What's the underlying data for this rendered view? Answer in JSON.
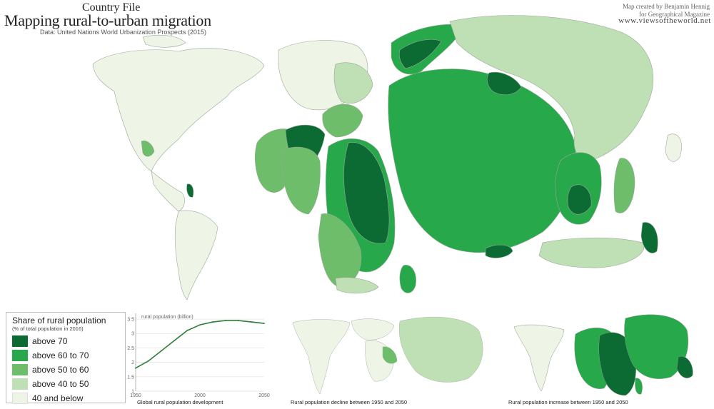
{
  "header": {
    "kicker": "Country File",
    "title": "Mapping rural-to-urban migration",
    "source": "Data: United Nations World Urbanization Prospects (2015)",
    "credit_line1": "Map created by Benjamin Hennig",
    "credit_line2": "for Geographical Magazine",
    "site": "www.viewsoftheworld.net"
  },
  "colors": {
    "above_70": "#0c6b33",
    "above_60_to_70": "#27a84a",
    "above_50_to_60": "#6dbd6a",
    "above_40_to_50": "#bfe0b4",
    "below_40": "#eef5e7",
    "outline": "#9aa89a"
  },
  "legend": {
    "title": "Share of rural population",
    "subtitle": "(% of total population in 2016)",
    "items": [
      {
        "label": "above 70",
        "color": "#0c6b33"
      },
      {
        "label": "above 60 to 70",
        "color": "#27a84a"
      },
      {
        "label": "above 50 to 60",
        "color": "#6dbd6a"
      },
      {
        "label": "above 40 to 50",
        "color": "#bfe0b4"
      },
      {
        "label": "40 and below",
        "color": "#eef5e7"
      }
    ]
  },
  "chart_data": {
    "type": "line",
    "title": "Global rural population development",
    "ylabel": "rural population (billion)",
    "x": [
      1950,
      1960,
      1970,
      1980,
      1990,
      2000,
      2010,
      2020,
      2030,
      2040,
      2050
    ],
    "values": [
      1.8,
      2.05,
      2.4,
      2.75,
      3.1,
      3.3,
      3.4,
      3.45,
      3.45,
      3.4,
      3.35
    ],
    "xlim": [
      1950,
      2050
    ],
    "ylim": [
      1,
      3.6
    ],
    "xticks": [
      "1950",
      "2000",
      "2050"
    ],
    "yticks": [
      "1",
      "1.5",
      "2",
      "2.5",
      "3",
      "3.5"
    ],
    "grid": true
  },
  "panels": {
    "decline_caption": "Rural population decline between 1950 and 2050",
    "increase_caption": "Rural population increase between 1950 and 2050"
  }
}
